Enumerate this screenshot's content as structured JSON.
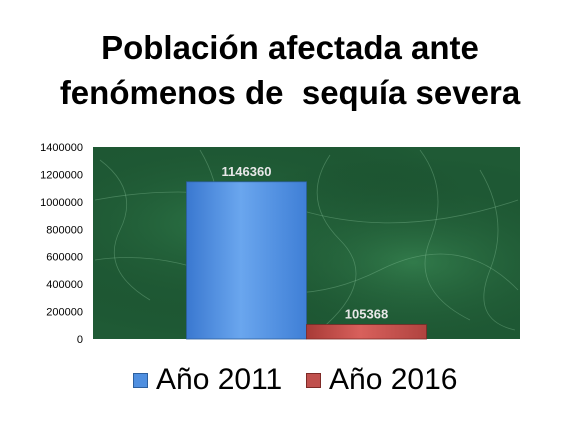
{
  "title_lines": [
    "Población afectada ante",
    "fenómenos de  sequía severa"
  ],
  "colors": {
    "series_2011": "#4f8fe0",
    "series_2016": "#c0504d",
    "plot_background": "#1f5a35"
  },
  "chart_data": {
    "type": "bar",
    "categories": [
      ""
    ],
    "series": [
      {
        "name": "Año 2011",
        "values": [
          1146360
        ]
      },
      {
        "name": "Año 2016",
        "values": [
          105368
        ]
      }
    ],
    "title": "Población afectada ante fenómenos de  sequía severa",
    "xlabel": "",
    "ylabel": "",
    "ylim": [
      0,
      1400000
    ],
    "yticks": [
      "0",
      "200000",
      "400000",
      "600000",
      "800000",
      "1000000",
      "1200000",
      "1400000"
    ],
    "data_labels": [
      "1146360",
      "105368"
    ],
    "grid": false,
    "legend_position": "bottom"
  },
  "legend": [
    {
      "label": "Año 2011",
      "color": "#4f8fe0"
    },
    {
      "label": "Año 2016",
      "color": "#c0504d"
    }
  ]
}
